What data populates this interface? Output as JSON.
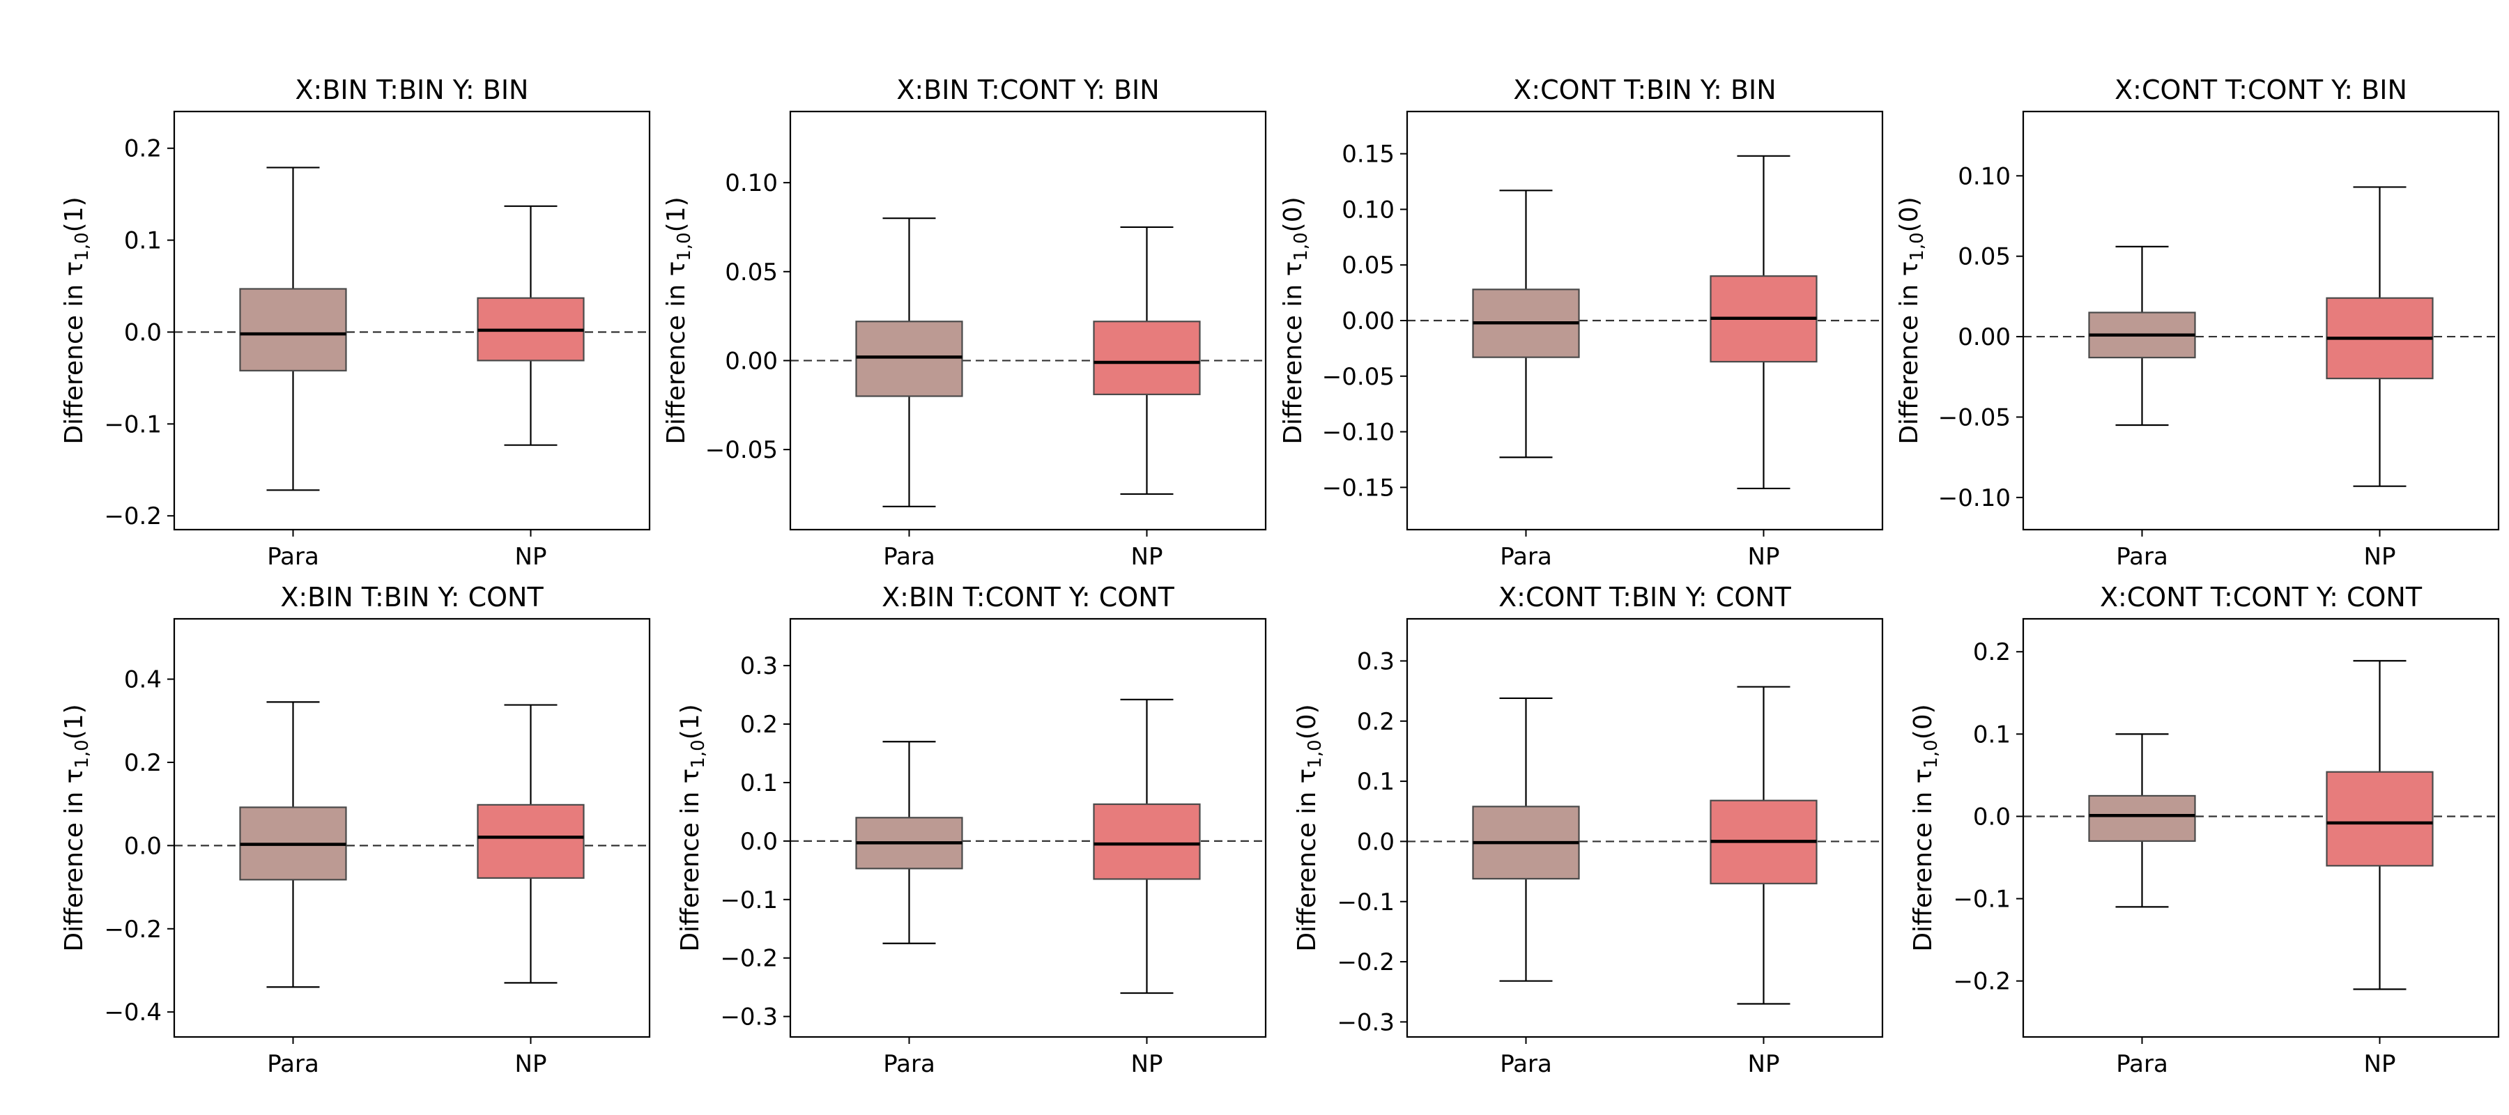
{
  "colors": {
    "para": "#bc9a93",
    "np": "#e77c7c"
  },
  "chart_data": [
    {
      "type": "box",
      "title": "X:BIN T:BIN Y: BIN",
      "ylabel_prefix": "Difference in τ",
      "ylabel_sub": "1,0",
      "ylabel_suffix": "(1)",
      "ylim": [
        -0.215,
        0.24
      ],
      "yticks": [
        -0.2,
        -0.1,
        0.0,
        0.1,
        0.2
      ],
      "ytick_labels": [
        "−0.2",
        "−0.1",
        "0.0",
        "0.1",
        "0.2"
      ],
      "categories": [
        "Para",
        "NP"
      ],
      "boxes": [
        {
          "name": "Para",
          "whisker_low": -0.172,
          "q1": -0.042,
          "median": -0.002,
          "q3": 0.047,
          "whisker_high": 0.179
        },
        {
          "name": "NP",
          "whisker_low": -0.123,
          "q1": -0.031,
          "median": 0.002,
          "q3": 0.037,
          "whisker_high": 0.137
        }
      ]
    },
    {
      "type": "box",
      "title": "X:BIN T:CONT Y: BIN",
      "ylabel_prefix": "Difference in τ",
      "ylabel_sub": "1,0",
      "ylabel_suffix": "(1)",
      "ylim": [
        -0.095,
        0.14
      ],
      "yticks": [
        -0.05,
        0.0,
        0.05,
        0.1
      ],
      "ytick_labels": [
        "−0.05",
        "0.00",
        "0.05",
        "0.10"
      ],
      "categories": [
        "Para",
        "NP"
      ],
      "boxes": [
        {
          "name": "Para",
          "whisker_low": -0.082,
          "q1": -0.02,
          "median": 0.002,
          "q3": 0.022,
          "whisker_high": 0.08
        },
        {
          "name": "NP",
          "whisker_low": -0.075,
          "q1": -0.019,
          "median": -0.001,
          "q3": 0.022,
          "whisker_high": 0.075
        }
      ]
    },
    {
      "type": "box",
      "title": "X:CONT T:BIN Y: BIN",
      "ylabel_prefix": "Difference in τ",
      "ylabel_sub": "1,0",
      "ylabel_suffix": "(0)",
      "ylim": [
        -0.188,
        0.188
      ],
      "yticks": [
        -0.15,
        -0.1,
        -0.05,
        0.0,
        0.05,
        0.1,
        0.15
      ],
      "ytick_labels": [
        "−0.15",
        "−0.10",
        "−0.05",
        "0.00",
        "0.05",
        "0.10",
        "0.15"
      ],
      "categories": [
        "Para",
        "NP"
      ],
      "boxes": [
        {
          "name": "Para",
          "whisker_low": -0.123,
          "q1": -0.033,
          "median": -0.002,
          "q3": 0.028,
          "whisker_high": 0.117
        },
        {
          "name": "NP",
          "whisker_low": -0.151,
          "q1": -0.037,
          "median": 0.002,
          "q3": 0.04,
          "whisker_high": 0.148
        }
      ]
    },
    {
      "type": "box",
      "title": "X:CONT T:CONT Y: BIN",
      "ylabel_prefix": "Difference in τ",
      "ylabel_sub": "1,0",
      "ylabel_suffix": "(0)",
      "ylim": [
        -0.12,
        0.14
      ],
      "yticks": [
        -0.1,
        -0.05,
        0.0,
        0.05,
        0.1
      ],
      "ytick_labels": [
        "−0.10",
        "−0.05",
        "0.00",
        "0.05",
        "0.10"
      ],
      "categories": [
        "Para",
        "NP"
      ],
      "boxes": [
        {
          "name": "Para",
          "whisker_low": -0.055,
          "q1": -0.013,
          "median": 0.001,
          "q3": 0.015,
          "whisker_high": 0.056
        },
        {
          "name": "NP",
          "whisker_low": -0.093,
          "q1": -0.026,
          "median": -0.001,
          "q3": 0.024,
          "whisker_high": 0.093
        }
      ]
    },
    {
      "type": "box",
      "title": "X:BIN T:BIN Y: CONT",
      "ylabel_prefix": "Difference in τ",
      "ylabel_sub": "1,0",
      "ylabel_suffix": "(1)",
      "ylim": [
        -0.46,
        0.545
      ],
      "yticks": [
        -0.4,
        -0.2,
        0.0,
        0.2,
        0.4
      ],
      "ytick_labels": [
        "−0.4",
        "−0.2",
        "0.0",
        "0.2",
        "0.4"
      ],
      "categories": [
        "Para",
        "NP"
      ],
      "boxes": [
        {
          "name": "Para",
          "whisker_low": -0.34,
          "q1": -0.082,
          "median": 0.003,
          "q3": 0.092,
          "whisker_high": 0.345
        },
        {
          "name": "NP",
          "whisker_low": -0.33,
          "q1": -0.078,
          "median": 0.02,
          "q3": 0.098,
          "whisker_high": 0.338
        }
      ]
    },
    {
      "type": "box",
      "title": "X:BIN T:CONT Y: CONT",
      "ylabel_prefix": "Difference in τ",
      "ylabel_sub": "1,0",
      "ylabel_suffix": "(1)",
      "ylim": [
        -0.335,
        0.38
      ],
      "yticks": [
        -0.3,
        -0.2,
        -0.1,
        0.0,
        0.1,
        0.2,
        0.3
      ],
      "ytick_labels": [
        "−0.3",
        "−0.2",
        "−0.1",
        "0.0",
        "0.1",
        "0.2",
        "0.3"
      ],
      "categories": [
        "Para",
        "NP"
      ],
      "boxes": [
        {
          "name": "Para",
          "whisker_low": -0.175,
          "q1": -0.047,
          "median": -0.003,
          "q3": 0.04,
          "whisker_high": 0.17
        },
        {
          "name": "NP",
          "whisker_low": -0.26,
          "q1": -0.065,
          "median": -0.005,
          "q3": 0.063,
          "whisker_high": 0.242
        }
      ]
    },
    {
      "type": "box",
      "title": "X:CONT T:BIN Y: CONT",
      "ylabel_prefix": "Difference in τ",
      "ylabel_sub": "1,0",
      "ylabel_suffix": "(0)",
      "ylim": [
        -0.325,
        0.37
      ],
      "yticks": [
        -0.3,
        -0.2,
        -0.1,
        0.0,
        0.1,
        0.2,
        0.3
      ],
      "ytick_labels": [
        "−0.3",
        "−0.2",
        "−0.1",
        "0.0",
        "0.1",
        "0.2",
        "0.3"
      ],
      "categories": [
        "Para",
        "NP"
      ],
      "boxes": [
        {
          "name": "Para",
          "whisker_low": -0.232,
          "q1": -0.062,
          "median": -0.002,
          "q3": 0.058,
          "whisker_high": 0.238
        },
        {
          "name": "NP",
          "whisker_low": -0.27,
          "q1": -0.07,
          "median": 0.0,
          "q3": 0.068,
          "whisker_high": 0.257
        }
      ]
    },
    {
      "type": "box",
      "title": "X:CONT T:CONT Y: CONT",
      "ylabel_prefix": "Difference in τ",
      "ylabel_sub": "1,0",
      "ylabel_suffix": "(0)",
      "ylim": [
        -0.268,
        0.24
      ],
      "yticks": [
        -0.2,
        -0.1,
        0.0,
        0.1,
        0.2
      ],
      "ytick_labels": [
        "−0.2",
        "−0.1",
        "0.0",
        "0.1",
        "0.2"
      ],
      "categories": [
        "Para",
        "NP"
      ],
      "boxes": [
        {
          "name": "Para",
          "whisker_low": -0.11,
          "q1": -0.03,
          "median": 0.001,
          "q3": 0.025,
          "whisker_high": 0.1
        },
        {
          "name": "NP",
          "whisker_low": -0.21,
          "q1": -0.06,
          "median": -0.008,
          "q3": 0.054,
          "whisker_high": 0.189
        }
      ]
    }
  ]
}
